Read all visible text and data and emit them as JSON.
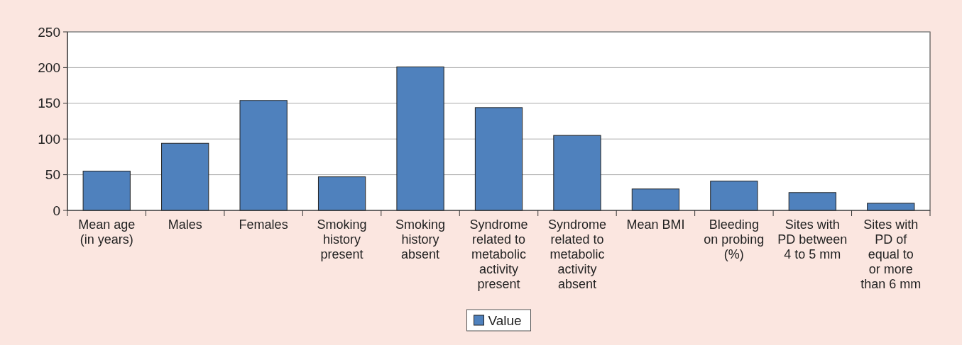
{
  "chart_data": {
    "type": "bar",
    "categories": [
      "Mean age (in years)",
      "Males",
      "Females",
      "Smoking history present",
      "Smoking history absent",
      "Syndrome related to metabolic activity present",
      "Syndrome related to metabolic activity absent",
      "Mean BMI",
      "Bleeding on probing (%)",
      "Sites with PD between 4 to 5 mm",
      "Sites with PD of equal to or more than 6 mm"
    ],
    "series": [
      {
        "name": "Value",
        "color": "#4f81bd",
        "values": [
          55,
          94,
          154,
          47,
          201,
          144,
          105,
          30,
          41,
          25,
          10
        ]
      }
    ],
    "ylim": [
      0,
      250
    ],
    "yticks": [
      0,
      50,
      100,
      150,
      200,
      250
    ],
    "grid": "y",
    "legend": "bottom"
  }
}
